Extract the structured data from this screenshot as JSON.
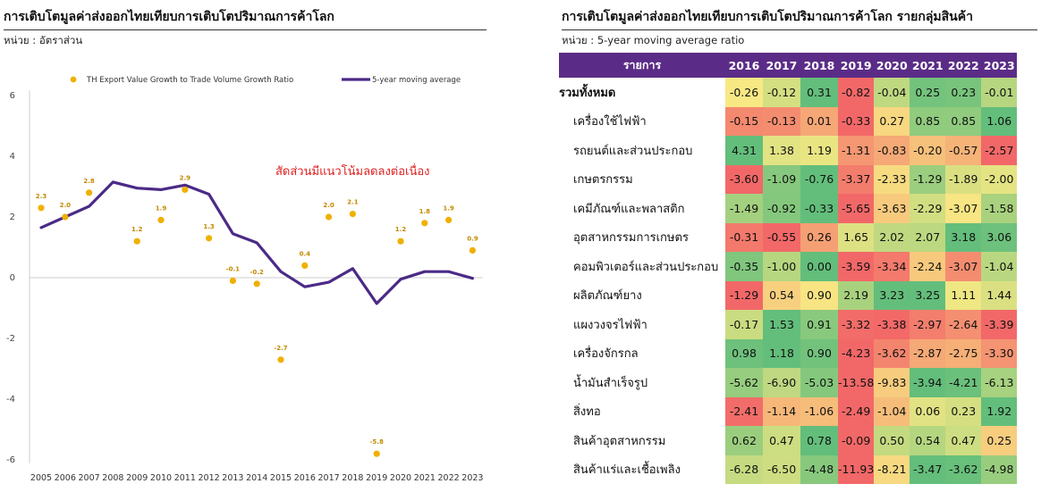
{
  "left_panel": {
    "title": "การเติบโตมูลค่าส่งออกไทยเทียบการเติบโตปริมาณการค้าโลก",
    "unit": "หน่วย : อัตราส่วน"
  },
  "right_panel": {
    "title": "การเติบโตมูลค่าส่งออกไทยเทียบการเติบโตปริมาณการค้าโลก รายกลุ่มสินค้า",
    "unit": "หน่วย : 5-year moving average ratio"
  },
  "colors": {
    "scatter": "#f0b000",
    "line": "#4b2a86",
    "annotation": "#e02020",
    "header": "#5b2c87"
  },
  "chart_data": [
    {
      "type": "line",
      "categories": [
        "2005",
        "2006",
        "2007",
        "2008",
        "2009",
        "2010",
        "2011",
        "2012",
        "2013",
        "2014",
        "2015",
        "2016",
        "2017",
        "2018",
        "2019",
        "2020",
        "2021",
        "2022",
        "2023"
      ],
      "series": [
        {
          "name": "TH Export Value Growth to Trade Volume Growth Ratio",
          "kind": "scatter",
          "values": [
            2.3,
            2.0,
            2.8,
            null,
            1.2,
            1.9,
            2.9,
            1.3,
            -0.1,
            -0.2,
            -2.7,
            0.4,
            2.0,
            2.1,
            -5.8,
            1.2,
            1.8,
            1.9,
            0.9
          ]
        },
        {
          "name": "5-year moving average",
          "kind": "line",
          "values": [
            1.65,
            2.0,
            2.35,
            3.15,
            2.95,
            2.9,
            3.05,
            2.75,
            1.45,
            1.15,
            0.2,
            -0.3,
            -0.15,
            0.3,
            -0.85,
            -0.05,
            0.2,
            0.2,
            -0.02
          ]
        }
      ],
      "point_labels": [
        "2.3",
        "2.0",
        "2.8",
        "",
        "1.2",
        "1.9",
        "2.9",
        "1.3",
        "-0.1",
        "-0.2",
        "-2.7",
        "0.4",
        "2.0",
        "2.1",
        "-5.8",
        "1.2",
        "1.8",
        "1.9",
        "0.9"
      ],
      "y_ticks": [
        "6",
        "4",
        "2",
        "0",
        "-2",
        "-4",
        "-6"
      ],
      "ylim": [
        -6,
        6
      ],
      "annotation": "สัดส่วนมีแนวโน้มลดลงต่อเนื่อง",
      "legend_position": "top",
      "grid": false
    },
    {
      "type": "heatmap",
      "header_label": "รายการ",
      "columns": [
        "2016",
        "2017",
        "2018",
        "2019",
        "2020",
        "2021",
        "2022",
        "2023"
      ],
      "rows": [
        {
          "label": "รวมทั้งหมด",
          "values": [
            "-0.26",
            "-0.12",
            "0.31",
            "-0.82",
            "-0.04",
            "0.25",
            "0.23",
            "-0.01"
          ]
        },
        {
          "label": "เครื่องใช้ไฟฟ้า",
          "values": [
            "-0.15",
            "-0.13",
            "0.01",
            "-0.33",
            "0.27",
            "0.85",
            "0.85",
            "1.06"
          ]
        },
        {
          "label": "รถยนต์และส่วนประกอบ",
          "values": [
            "4.31",
            "1.38",
            "1.19",
            "-1.31",
            "-0.83",
            "-0.20",
            "-0.57",
            "-2.57"
          ]
        },
        {
          "label": "เกษตรกรรม",
          "values": [
            "-3.60",
            "-1.09",
            "-0.76",
            "-3.37",
            "-2.33",
            "-1.29",
            "-1.89",
            "-2.00"
          ]
        },
        {
          "label": "เคมีภัณฑ์และพลาสติก",
          "values": [
            "-1.49",
            "-0.92",
            "-0.33",
            "-5.65",
            "-3.63",
            "-2.29",
            "-3.07",
            "-1.58"
          ]
        },
        {
          "label": "อุตสาหกรรมการเกษตร",
          "values": [
            "-0.31",
            "-0.55",
            "0.26",
            "1.65",
            "2.02",
            "2.07",
            "3.18",
            "3.06"
          ]
        },
        {
          "label": "คอมพิวเตอร์และส่วนประกอบ",
          "values": [
            "-0.35",
            "-1.00",
            "0.00",
            "-3.59",
            "-3.34",
            "-2.24",
            "-3.07",
            "-1.04"
          ]
        },
        {
          "label": "ผลิตภัณฑ์ยาง",
          "values": [
            "-1.29",
            "0.54",
            "0.90",
            "2.19",
            "3.23",
            "3.25",
            "1.11",
            "1.44"
          ]
        },
        {
          "label": "แผงวงจรไฟฟ้า",
          "values": [
            "-0.17",
            "1.53",
            "0.91",
            "-3.32",
            "-3.38",
            "-2.97",
            "-2.64",
            "-3.39"
          ]
        },
        {
          "label": "เครื่องจักรกล",
          "values": [
            "0.98",
            "1.18",
            "0.90",
            "-4.23",
            "-3.62",
            "-2.87",
            "-2.75",
            "-3.30"
          ]
        },
        {
          "label": "น้ำมันสำเร็จรูป",
          "values": [
            "-5.62",
            "-6.90",
            "-5.03",
            "-13.58",
            "-9.83",
            "-3.94",
            "-4.21",
            "-6.13"
          ]
        },
        {
          "label": "สิ่งทอ",
          "values": [
            "-2.41",
            "-1.14",
            "-1.06",
            "-2.49",
            "-1.04",
            "0.06",
            "0.23",
            "1.92"
          ]
        },
        {
          "label": "สินค้าอุตสาหกรรม",
          "values": [
            "0.62",
            "0.47",
            "0.78",
            "-0.09",
            "0.50",
            "0.54",
            "0.47",
            "0.25"
          ]
        },
        {
          "label": "สินค้าแร่และเชื้อเพลิง",
          "values": [
            "-6.28",
            "-6.50",
            "-4.48",
            "-11.93",
            "-8.21",
            "-3.47",
            "-3.62",
            "-4.98"
          ]
        }
      ]
    }
  ]
}
